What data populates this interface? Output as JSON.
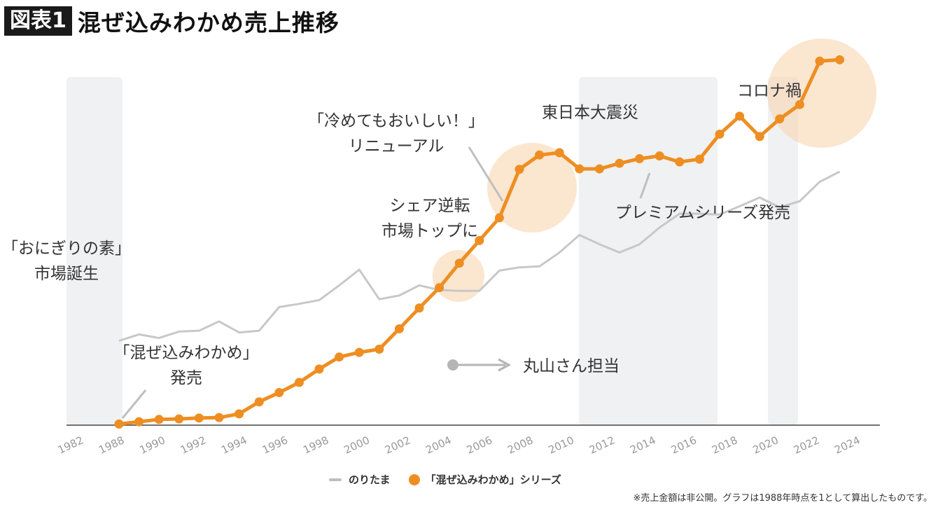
{
  "header": {
    "badge": "図表1",
    "title": "混ぜ込みわかめ売上推移"
  },
  "legend": {
    "series1": "のりたま",
    "series2": "「混ぜ込みわかめ」シリーズ"
  },
  "footnote": "※売上金額は非公開。グラフは1988年時点を1として算出したものです。",
  "colors": {
    "wakame": "#ee8e22",
    "noritama": "#c8c8c8",
    "highlight": "#f9d6b0",
    "band": "#eceef1"
  },
  "annotations": {
    "onigiri_1": "「おにぎりの素」",
    "onigiri_2": "市場誕生",
    "launch_1": "「混ぜ込みわかめ」",
    "launch_2": "発売",
    "maruyama": "丸山さん担当",
    "share_1": "シェア逆転",
    "share_2": "市場トップに",
    "renewal_1": "「冷めてもおいしい！」",
    "renewal_2": "リニューアル",
    "quake": "東日本大震災",
    "premium": "プレミアムシリーズ発売",
    "corona": "コロナ禍"
  },
  "chart_data": {
    "type": "line",
    "x_tick_labels": [
      "1982",
      "1988",
      "1990",
      "1992",
      "1994",
      "1996",
      "1998",
      "2000",
      "2002",
      "2004",
      "2006",
      "2008",
      "2010",
      "2012",
      "2014",
      "2016",
      "2018",
      "2020",
      "2022",
      "2024"
    ],
    "y_axis": "hidden (index, 1988 = 1)",
    "series": [
      {
        "name": "「混ぜ込みわかめ」シリーズ",
        "x": [
          1988,
          1989,
          1990,
          1991,
          1992,
          1993,
          1994,
          1995,
          1996,
          1997,
          1998,
          1999,
          2000,
          2001,
          2002,
          2003,
          2004,
          2005,
          2006,
          2007,
          2008,
          2009,
          2010,
          2011,
          2012,
          2013,
          2014,
          2015,
          2016,
          2017,
          2018,
          2019,
          2020,
          2021,
          2022,
          2023,
          2024
        ],
        "values": [
          1.0,
          1.5,
          2.0,
          2.1,
          2.3,
          2.4,
          3.2,
          5.8,
          7.8,
          10.0,
          12.9,
          15.5,
          16.5,
          17.2,
          21.6,
          26.1,
          30.5,
          35.8,
          40.7,
          45.6,
          56.1,
          59.2,
          59.7,
          56.2,
          56.2,
          57.4,
          58.4,
          59.0,
          57.7,
          58.3,
          63.7,
          67.6,
          63.2,
          67.0,
          70.1,
          79.5,
          79.8
        ]
      },
      {
        "name": "のりたま",
        "x": [
          1988,
          1989,
          1990,
          1991,
          1992,
          1993,
          1994,
          1995,
          1996,
          1997,
          1998,
          1999,
          2000,
          2001,
          2002,
          2003,
          2004,
          2005,
          2006,
          2007,
          2008,
          2009,
          2010,
          2011,
          2012,
          2013,
          2014,
          2015,
          2016,
          2017,
          2018,
          2019,
          2020,
          2021,
          2022,
          2023,
          2024
        ],
        "values": [
          19.0,
          20.4,
          19.6,
          21.0,
          21.2,
          23.2,
          20.8,
          21.2,
          26.3,
          27.0,
          27.8,
          31.0,
          34.4,
          28.0,
          28.8,
          31.0,
          30.0,
          29.8,
          29.8,
          34.2,
          34.9,
          35.1,
          38.1,
          41.9,
          39.9,
          38.1,
          39.9,
          43.5,
          46.5,
          46.5,
          46.3,
          48.1,
          50.0,
          47.9,
          49.2,
          53.4,
          55.6
        ]
      }
    ],
    "shaded_periods": [
      [
        1982,
        1988
      ],
      [
        2010,
        2016
      ],
      [
        2019,
        2020
      ]
    ],
    "highlighted_years": [
      2004,
      2007,
      2023
    ],
    "grid": false,
    "legend_position": "bottom"
  }
}
